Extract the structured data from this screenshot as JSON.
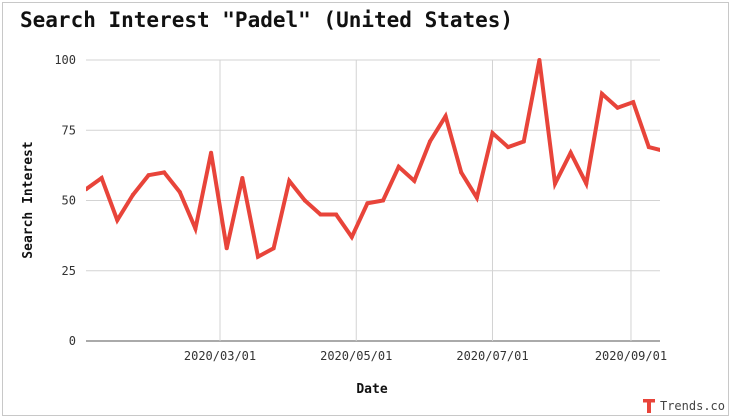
{
  "title": "Search Interest \"Padel\" (United States)",
  "brand": {
    "name": "Trends.co",
    "icon": "trends-logo-icon",
    "color": "#e8443a"
  },
  "colors": {
    "line": "#e8443a",
    "grid": "#d3d3d3"
  },
  "chart_data": {
    "type": "line",
    "title": "Search Interest \"Padel\" (United States)",
    "xlabel": "Date",
    "ylabel": "Search Interest",
    "ylim": [
      0,
      100
    ],
    "xlim": [
      "2020-01-01",
      "2020-09-14"
    ],
    "yticks": [
      0,
      25,
      50,
      75,
      100
    ],
    "xticks": [
      "2020/03/01",
      "2020/05/01",
      "2020/07/01",
      "2020/09/01"
    ],
    "grid": true,
    "legend": "none",
    "series": [
      {
        "x": [
          "2020-01-01",
          "2020-01-08",
          "2020-01-15",
          "2020-01-22",
          "2020-01-29",
          "2020-02-05",
          "2020-02-12",
          "2020-02-19",
          "2020-02-26",
          "2020-03-04",
          "2020-03-11",
          "2020-03-18",
          "2020-03-25",
          "2020-04-01",
          "2020-04-08",
          "2020-04-15",
          "2020-04-22",
          "2020-04-29",
          "2020-05-06",
          "2020-05-13",
          "2020-05-20",
          "2020-05-27",
          "2020-06-03",
          "2020-06-10",
          "2020-06-17",
          "2020-06-24",
          "2020-07-01",
          "2020-07-08",
          "2020-07-15",
          "2020-07-22",
          "2020-07-29",
          "2020-08-05",
          "2020-08-12",
          "2020-08-19",
          "2020-08-26",
          "2020-09-02",
          "2020-09-09",
          "2020-09-14"
        ],
        "values": [
          54,
          58,
          43,
          52,
          59,
          60,
          53,
          40,
          67,
          33,
          58,
          30,
          33,
          57,
          50,
          45,
          45,
          37,
          49,
          50,
          62,
          57,
          71,
          80,
          60,
          51,
          74,
          69,
          71,
          100,
          56,
          67,
          56,
          88,
          83,
          85,
          69,
          68
        ]
      }
    ]
  }
}
